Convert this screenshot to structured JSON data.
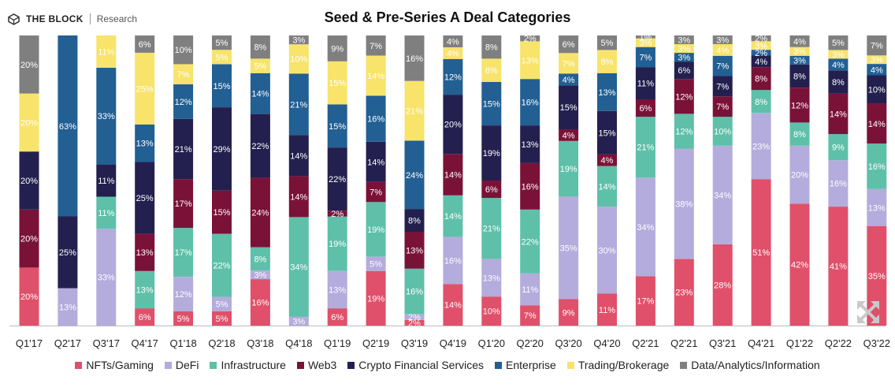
{
  "brand": {
    "name": "THE BLOCK",
    "sub": "Research"
  },
  "chart_data": {
    "type": "bar",
    "stacked": "percent",
    "title": "Seed & Pre-Series A Deal Categories",
    "xlabel": "",
    "ylabel": "",
    "ylim": [
      0,
      100
    ],
    "grid": false,
    "legend_position": "bottom",
    "categories": [
      "Q1'17",
      "Q2'17",
      "Q3'17",
      "Q4'17",
      "Q1'18",
      "Q2'18",
      "Q3'18",
      "Q4'18",
      "Q1'19",
      "Q2'19",
      "Q3'19",
      "Q4'19",
      "Q1'20",
      "Q2'20",
      "Q3'20",
      "Q4'20",
      "Q2'21",
      "Q2'21",
      "Q3'21",
      "Q4'21",
      "Q1'22",
      "Q2'22",
      "Q3'22"
    ],
    "series": [
      {
        "name": "NFTs/Gaming",
        "color": "#e0506a",
        "values": [
          20,
          0,
          0,
          6,
          5,
          5,
          16,
          0,
          6,
          19,
          2,
          14,
          10,
          7,
          9,
          11,
          17,
          23,
          28,
          51,
          42,
          41,
          35
        ],
        "labels": [
          "20%",
          "",
          "",
          "6%",
          "5%",
          "5%",
          "16%",
          "",
          "6%",
          "19%",
          "2%",
          "14%",
          "10%",
          "7%",
          "9%",
          "11%",
          "17%",
          "23%",
          "28%",
          "51%",
          "42%",
          "41%",
          "35%"
        ]
      },
      {
        "name": "DeFi",
        "color": "#b3acdc",
        "values": [
          0,
          13,
          33,
          0,
          12,
          5,
          3,
          3,
          13,
          5,
          2,
          16,
          13,
          11,
          35,
          30,
          34,
          38,
          34,
          23,
          20,
          16,
          13
        ],
        "labels": [
          "",
          "13%",
          "33%",
          "",
          "12%",
          "5%",
          "3%",
          "3%",
          "13%",
          "5%",
          "2%",
          "16%",
          "13%",
          "11%",
          "35%",
          "30%",
          "34%",
          "38%",
          "34%",
          "23%",
          "20%",
          "16%",
          "13%"
        ]
      },
      {
        "name": "Infrastructure",
        "color": "#5ec0a9",
        "values": [
          0,
          0,
          11,
          13,
          17,
          22,
          8,
          34,
          19,
          19,
          16,
          14,
          21,
          22,
          19,
          14,
          21,
          12,
          10,
          8,
          8,
          9,
          16
        ],
        "labels": [
          "",
          "",
          "11%",
          "13%",
          "17%",
          "22%",
          "8%",
          "34%",
          "19%",
          "19%",
          "16%",
          "14%",
          "21%",
          "22%",
          "19%",
          "14%",
          "21%",
          "12%",
          "10%",
          "8%",
          "8%",
          "9%",
          "16%"
        ]
      },
      {
        "name": "Web3",
        "color": "#7a1238",
        "values": [
          20,
          0,
          0,
          13,
          17,
          15,
          24,
          14,
          2,
          7,
          13,
          14,
          6,
          16,
          4,
          4,
          6,
          12,
          7,
          8,
          12,
          14,
          14
        ],
        "labels": [
          "20%",
          "",
          "",
          "13%",
          "17%",
          "15%",
          "24%",
          "14%",
          "2%",
          "7%",
          "13%",
          "14%",
          "6%",
          "16%",
          "4%",
          "4%",
          "6%",
          "12%",
          "7%",
          "8%",
          "12%",
          "14%",
          "14%"
        ]
      },
      {
        "name": "Crypto Financial Services",
        "color": "#23204f",
        "values": [
          20,
          25,
          11,
          25,
          21,
          29,
          22,
          14,
          22,
          14,
          8,
          20,
          19,
          13,
          15,
          15,
          11,
          6,
          7,
          4,
          8,
          8,
          10
        ],
        "labels": [
          "20%",
          "25%",
          "11%",
          "25%",
          "21%",
          "29%",
          "22%",
          "14%",
          "22%",
          "14%",
          "8%",
          "20%",
          "19%",
          "13%",
          "15%",
          "15%",
          "11%",
          "6%",
          "7%",
          "4%",
          "8%",
          "8%",
          "10%"
        ]
      },
      {
        "name": "Enterprise",
        "color": "#225f93",
        "values": [
          0,
          63,
          33,
          13,
          12,
          15,
          14,
          21,
          15,
          16,
          24,
          12,
          15,
          16,
          4,
          13,
          7,
          3,
          7,
          2,
          3,
          4,
          4
        ],
        "labels": [
          "",
          "63%",
          "33%",
          "13%",
          "12%",
          "15%",
          "14%",
          "21%",
          "15%",
          "16%",
          "24%",
          "12%",
          "15%",
          "16%",
          "4%",
          "13%",
          "7%",
          "3%",
          "7%",
          "2%",
          "3%",
          "4%",
          "4%"
        ]
      },
      {
        "name": "Trading/Brokerage",
        "color": "#f8e36b",
        "values": [
          20,
          0,
          11,
          25,
          7,
          5,
          5,
          10,
          15,
          14,
          21,
          4,
          8,
          13,
          7,
          8,
          3,
          3,
          4,
          3,
          3,
          3,
          3
        ],
        "labels": [
          "20%",
          "",
          "11%",
          "25%",
          "7%",
          "5%",
          "5%",
          "10%",
          "15%",
          "14%",
          "21%",
          "4%",
          "8%",
          "13%",
          "7%",
          "8%",
          "3%",
          "3%",
          "4%",
          "3%",
          "3%",
          "3%",
          "3%"
        ]
      },
      {
        "name": "Data/Analytics/Information",
        "color": "#7f7f7f",
        "values": [
          20,
          0,
          0,
          6,
          10,
          5,
          8,
          3,
          9,
          7,
          16,
          4,
          8,
          2,
          6,
          5,
          1,
          3,
          3,
          2,
          4,
          5,
          7
        ],
        "labels": [
          "20%",
          "",
          "",
          "6%",
          "10%",
          "5%",
          "8%",
          "3%",
          "9%",
          "7%",
          "16%",
          "4%",
          "8%",
          "2%",
          "6%",
          "5%",
          "1%",
          "3%",
          "3%",
          "2%",
          "4%",
          "5%",
          "7%"
        ]
      }
    ]
  }
}
